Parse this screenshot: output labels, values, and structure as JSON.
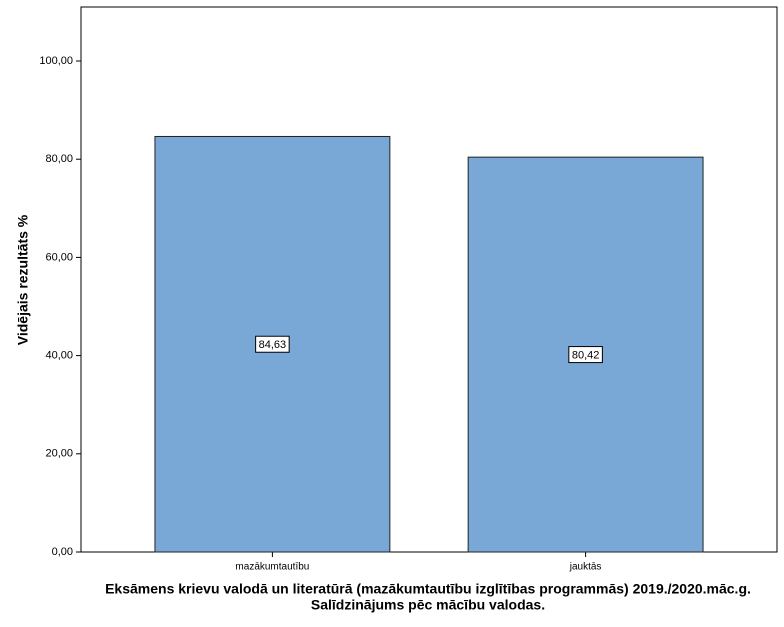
{
  "chart_data": {
    "type": "bar",
    "categories": [
      "mazākumtautību",
      "jauktās"
    ],
    "values": [
      84.63,
      80.42
    ],
    "value_labels": [
      "84,63",
      "80,42"
    ],
    "color": "#7aa8d6",
    "ylabel": "Vidējais rezultāts %",
    "xlabel": [
      "Eksāmens krievu valodā un literatūrā (mazākumtautību izglītības programmās) 2019./2020.māc.g.",
      "Salīdzinājums pēc mācību valodas."
    ],
    "ylim": [
      0,
      111
    ],
    "yticks": [
      {
        "value": 0,
        "label": "0,00"
      },
      {
        "value": 20,
        "label": "20,00"
      },
      {
        "value": 40,
        "label": "40,00"
      },
      {
        "value": 60,
        "label": "60,00"
      },
      {
        "value": 80,
        "label": "80,00"
      },
      {
        "value": 100,
        "label": "100,00"
      }
    ],
    "grid": false
  }
}
